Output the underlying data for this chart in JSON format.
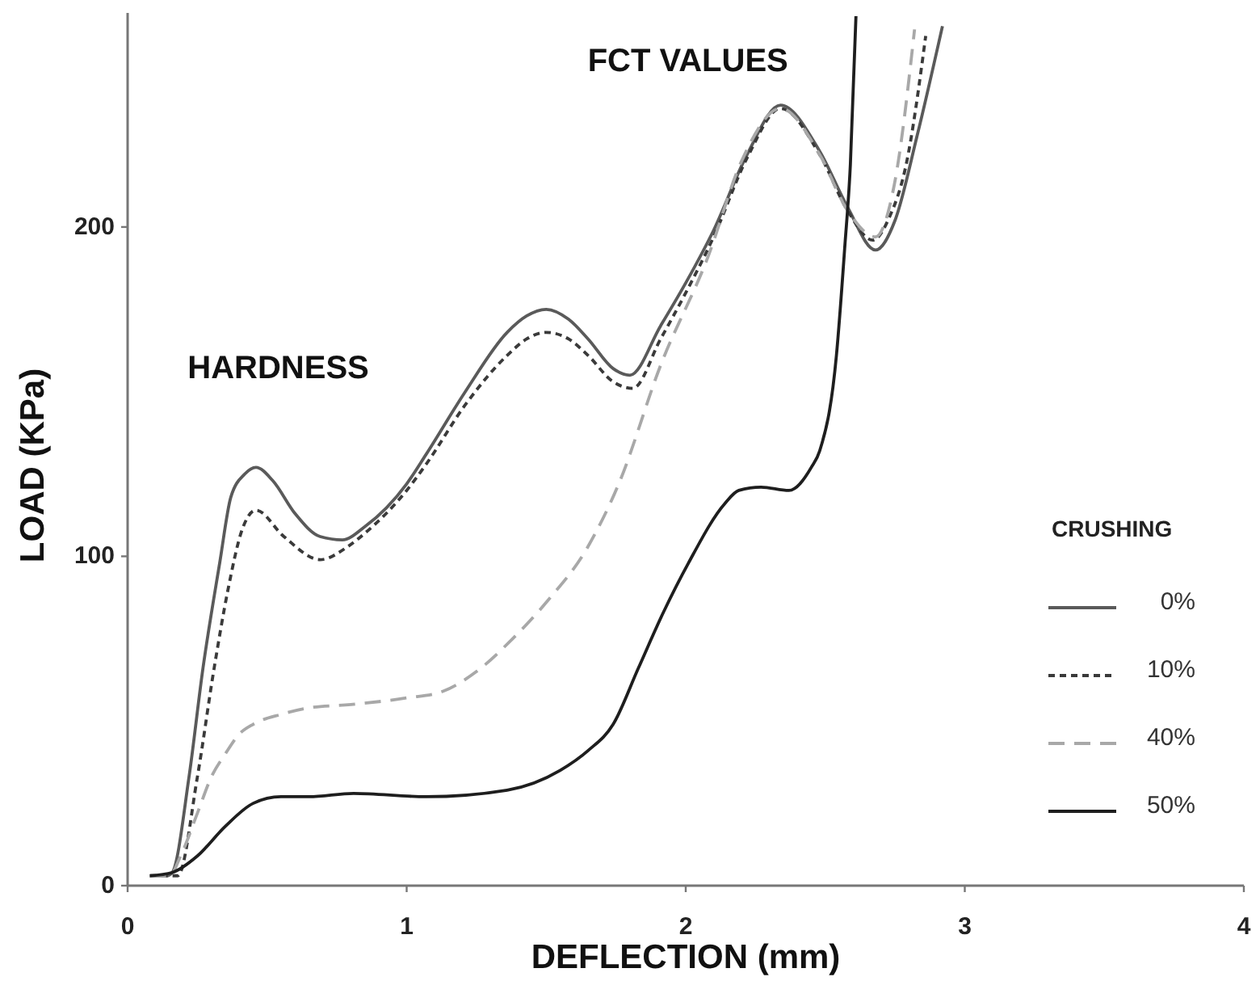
{
  "chart_data": {
    "type": "line",
    "xlabel": "DEFLECTION (mm)",
    "ylabel": "LOAD (KPa)",
    "legend_title": "CRUSHING",
    "legend": "right",
    "xlim": [
      0,
      4
    ],
    "xticks": [
      0,
      1,
      2,
      3,
      4
    ],
    "ylim": [
      0,
      265
    ],
    "yticks": [
      0,
      100,
      200
    ],
    "annotations": [
      "HARDNESS",
      "FCT VALUES"
    ],
    "series": [
      {
        "name": "0%",
        "color": "#5a5a5a",
        "line_style": "solid",
        "x": [
          0.08,
          0.14,
          0.16,
          0.22,
          0.27,
          0.33,
          0.37,
          0.42,
          0.46,
          0.52,
          0.6,
          0.69,
          0.77,
          0.85,
          1.0,
          1.07,
          1.21,
          1.36,
          1.43,
          1.5,
          1.58,
          1.65,
          1.74,
          1.8,
          1.91,
          2.0,
          2.1,
          2.22,
          2.34,
          2.48,
          2.58,
          2.68,
          2.75,
          2.83,
          2.92
        ],
        "values": [
          3,
          3,
          4,
          33,
          66,
          98,
          118,
          125,
          127,
          123,
          113,
          106,
          105,
          109,
          122,
          131,
          150,
          168,
          173,
          175,
          172,
          166,
          157,
          155,
          170,
          183,
          199,
          222,
          237,
          223,
          206,
          193,
          202,
          228,
          261
        ]
      },
      {
        "name": "10%",
        "color": "#3a3a3a",
        "line_style": "dotted",
        "x": [
          0.08,
          0.15,
          0.18,
          0.25,
          0.31,
          0.36,
          0.41,
          0.46,
          0.56,
          0.69,
          0.79,
          0.85,
          1.0,
          1.07,
          1.21,
          1.36,
          1.43,
          1.5,
          1.58,
          1.65,
          1.74,
          1.81,
          1.91,
          2.0,
          2.1,
          2.22,
          2.34,
          2.48,
          2.58,
          2.67,
          2.73,
          2.79,
          2.86
        ],
        "values": [
          3,
          3,
          3,
          33,
          66,
          90,
          108,
          114,
          106,
          99,
          103,
          107,
          120,
          128,
          146,
          161,
          166,
          168,
          166,
          161,
          153,
          151,
          166,
          180,
          197,
          221,
          236,
          222,
          205,
          196,
          203,
          219,
          258
        ]
      },
      {
        "name": "40%",
        "color": "#a8a8a8",
        "line_style": "dashed",
        "x": [
          0.08,
          0.15,
          0.19,
          0.25,
          0.3,
          0.35,
          0.4,
          0.45,
          0.55,
          0.65,
          0.8,
          1.0,
          1.13,
          1.25,
          1.38,
          1.5,
          1.65,
          1.76,
          1.91,
          2.08,
          2.2,
          2.34,
          2.48,
          2.58,
          2.68,
          2.75,
          2.82
        ],
        "values": [
          3,
          3,
          9,
          22,
          33,
          40,
          46,
          49,
          52,
          54,
          55,
          57,
          59,
          65,
          75,
          86,
          103,
          122,
          158,
          191,
          220,
          236,
          222,
          205,
          197,
          214,
          260
        ]
      },
      {
        "name": "50%",
        "color": "#1e1e1e",
        "line_style": "solid",
        "x": [
          0.08,
          0.16,
          0.25,
          0.35,
          0.45,
          0.55,
          0.65,
          0.81,
          1.07,
          1.36,
          1.55,
          1.65,
          1.74,
          1.83,
          1.92,
          2.01,
          2.14,
          2.19,
          2.27,
          2.37,
          2.45,
          2.48,
          2.54,
          2.57,
          2.59,
          2.61
        ],
        "values": [
          3,
          4,
          9,
          18,
          25,
          27,
          27,
          28,
          27,
          29,
          35,
          41,
          49,
          66,
          83,
          98,
          116,
          120,
          121,
          120,
          127,
          132,
          161,
          194,
          219,
          264
        ]
      }
    ]
  }
}
